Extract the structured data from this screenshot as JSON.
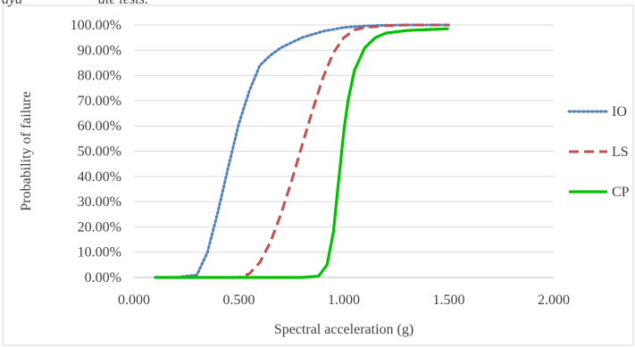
{
  "header_fragment": "aya",
  "header_fragment_2": "ate tests.",
  "chart_data": {
    "type": "line",
    "title": "",
    "xlabel": "Spectral acceleration (g)",
    "ylabel": "Probability of failure",
    "xlim": [
      0,
      2
    ],
    "ylim": [
      0,
      100
    ],
    "x_ticks": [
      "0.000",
      "0.500",
      "1.000",
      "1.500",
      "2.000"
    ],
    "y_ticks": [
      "0.00%",
      "10.00%",
      "20.00%",
      "30.00%",
      "40.00%",
      "50.00%",
      "60.00%",
      "70.00%",
      "80.00%",
      "90.00%",
      "100.00%"
    ],
    "grid": "horizontal",
    "legend_position": "right",
    "series": [
      {
        "name": "IO",
        "color": "#4f81bd",
        "style": "dotted",
        "x": [
          0.1,
          0.2,
          0.3,
          0.35,
          0.4,
          0.45,
          0.5,
          0.55,
          0.6,
          0.65,
          0.7,
          0.8,
          0.9,
          1.0,
          1.1,
          1.2,
          1.3,
          1.4,
          1.5
        ],
        "y": [
          0,
          0,
          1,
          10,
          26,
          44,
          61,
          74,
          84,
          88,
          91,
          95,
          97.5,
          99,
          99.6,
          99.9,
          100,
          100,
          100
        ]
      },
      {
        "name": "LS",
        "color": "#c0504d",
        "style": "dashed",
        "x": [
          0.1,
          0.3,
          0.5,
          0.55,
          0.6,
          0.65,
          0.7,
          0.75,
          0.8,
          0.85,
          0.9,
          0.95,
          1.0,
          1.05,
          1.1,
          1.2,
          1.3,
          1.4,
          1.5
        ],
        "y": [
          0,
          0,
          0,
          1.5,
          6,
          14,
          25,
          38,
          52,
          66,
          79,
          89,
          95,
          98,
          99,
          99.7,
          100,
          100,
          100
        ]
      },
      {
        "name": "CP",
        "color": "#00c000",
        "style": "solid",
        "x": [
          0.1,
          0.5,
          0.8,
          0.88,
          0.92,
          0.95,
          0.97,
          0.98,
          0.99,
          1.0,
          1.02,
          1.05,
          1.1,
          1.15,
          1.2,
          1.3,
          1.4,
          1.5
        ],
        "y": [
          0,
          0,
          0,
          0.5,
          5,
          18,
          34,
          42,
          50,
          58,
          70,
          82,
          91,
          95,
          96.8,
          97.8,
          98.2,
          98.5
        ]
      }
    ]
  }
}
